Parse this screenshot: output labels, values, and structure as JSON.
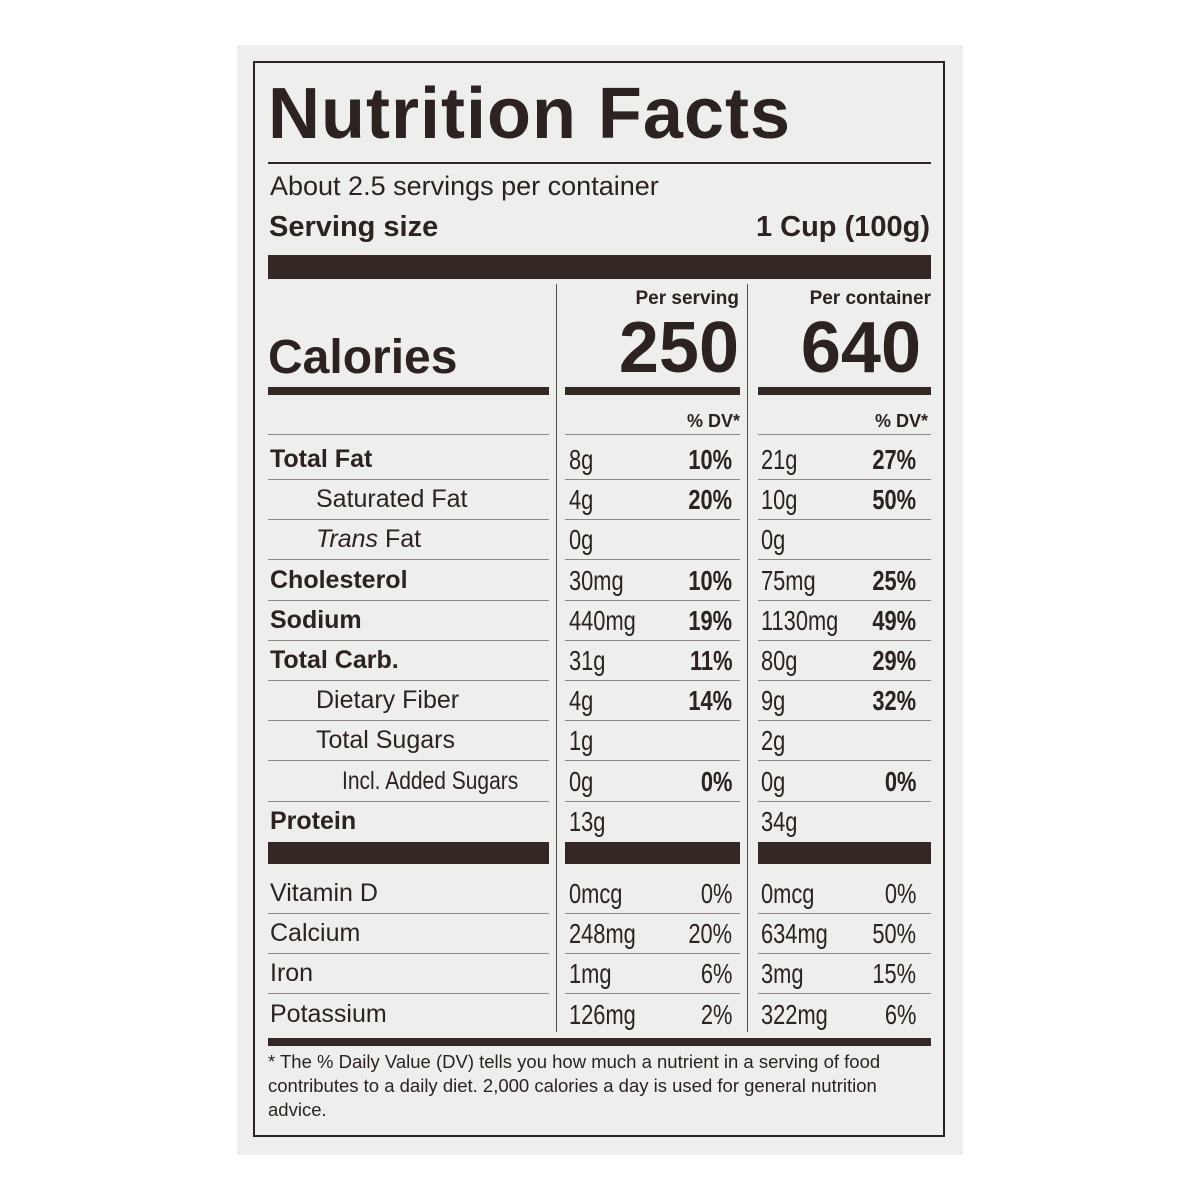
{
  "label": {
    "title": "Nutrition Facts",
    "servings_per_container": "About 2.5 servings per container",
    "serving_size_label": "Serving size",
    "serving_size_value": "1 Cup (100g)",
    "col_per_serving": "Per serving",
    "col_per_container": "Per container",
    "calories_label": "Calories",
    "calories_per_serving": "250",
    "calories_per_container": "640",
    "dv_header": "% DV*",
    "nutrients": [
      {
        "name": "Total Fat",
        "serving_amount": "8g",
        "serving_dv": "10%",
        "container_amount": "21g",
        "container_dv": "27%"
      },
      {
        "name": "Saturated Fat",
        "serving_amount": "4g",
        "serving_dv": "20%",
        "container_amount": "10g",
        "container_dv": "50%"
      },
      {
        "name_italic": "Trans",
        "name": " Fat",
        "serving_amount": "0g",
        "serving_dv": "",
        "container_amount": "0g",
        "container_dv": ""
      },
      {
        "name": "Cholesterol",
        "serving_amount": "30mg",
        "serving_dv": "10%",
        "container_amount": "75mg",
        "container_dv": "25%"
      },
      {
        "name": "Sodium",
        "serving_amount": "440mg",
        "serving_dv": "19%",
        "container_amount": "1130mg",
        "container_dv": "49%"
      },
      {
        "name": "Total Carb.",
        "serving_amount": "31g",
        "serving_dv": "11%",
        "container_amount": "80g",
        "container_dv": "29%"
      },
      {
        "name": "Dietary Fiber",
        "serving_amount": "4g",
        "serving_dv": "14%",
        "container_amount": "9g",
        "container_dv": "32%"
      },
      {
        "name": "Total Sugars",
        "serving_amount": "1g",
        "serving_dv": "",
        "container_amount": "2g",
        "container_dv": ""
      },
      {
        "name": "Incl. Added Sugars",
        "serving_amount": "0g",
        "serving_dv": "0%",
        "container_amount": "0g",
        "container_dv": "0%"
      },
      {
        "name": "Protein",
        "serving_amount": "13g",
        "serving_dv": "",
        "container_amount": "34g",
        "container_dv": ""
      }
    ],
    "vitamins": [
      {
        "name": "Vitamin D",
        "serving_amount": "0mcg",
        "serving_dv": "0%",
        "container_amount": "0mcg",
        "container_dv": "0%"
      },
      {
        "name": "Calcium",
        "serving_amount": "248mg",
        "serving_dv": "20%",
        "container_amount": "634mg",
        "container_dv": "50%"
      },
      {
        "name": "Iron",
        "serving_amount": "1mg",
        "serving_dv": "6%",
        "container_amount": "3mg",
        "container_dv": "15%"
      },
      {
        "name": "Potassium",
        "serving_amount": "126mg",
        "serving_dv": "2%",
        "container_amount": "322mg",
        "container_dv": "6%"
      }
    ],
    "footnote": "* The % Daily Value (DV) tells you how much a nutrient in a serving of food contributes to a daily diet. 2,000 calories a day is used for general nutrition advice."
  }
}
